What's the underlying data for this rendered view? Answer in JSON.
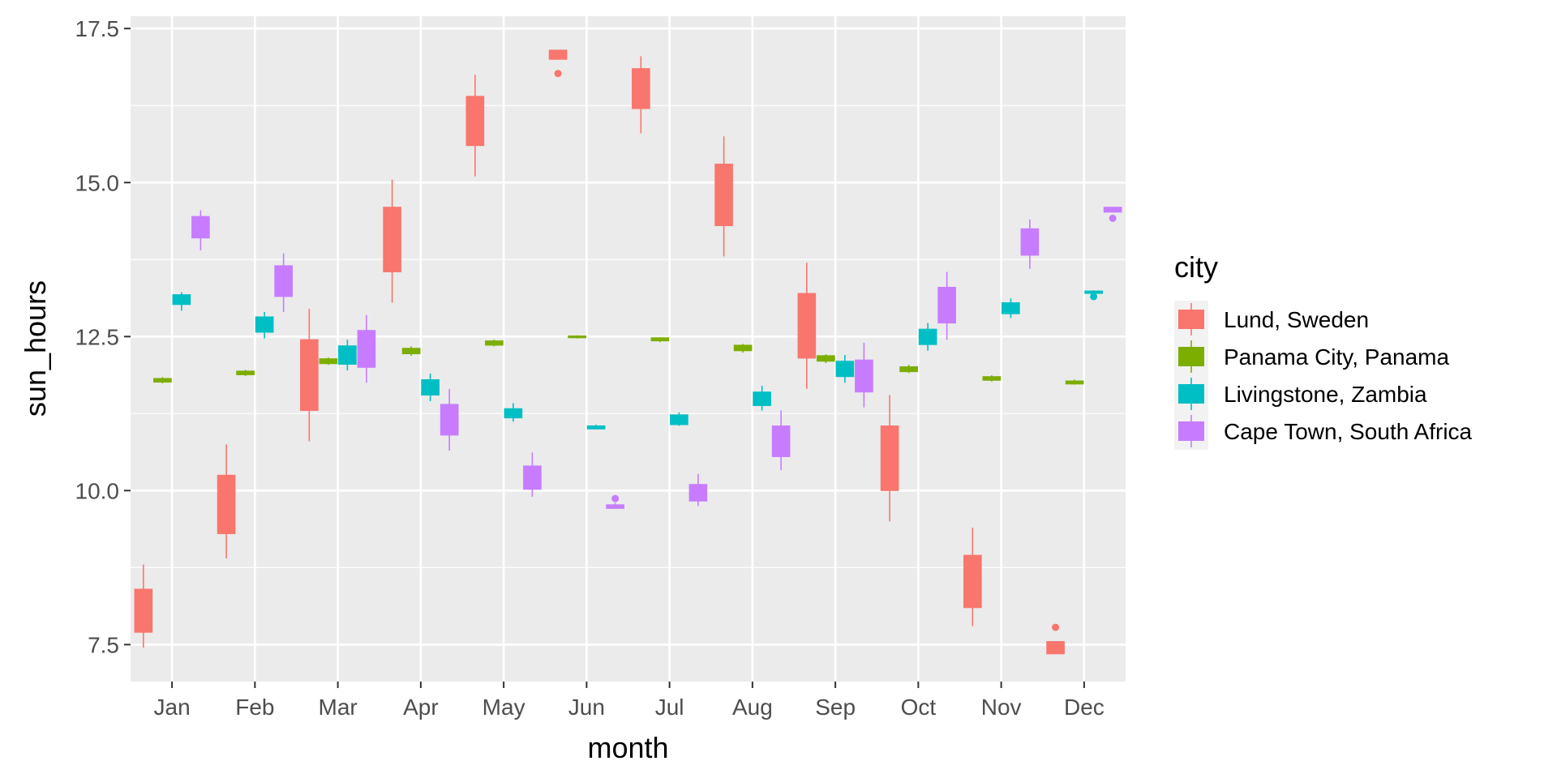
{
  "chart_data": {
    "type": "boxplot",
    "title": "",
    "xlabel": "month",
    "ylabel": "sun_hours",
    "categories": [
      "Jan",
      "Feb",
      "Mar",
      "Apr",
      "May",
      "Jun",
      "Jul",
      "Aug",
      "Sep",
      "Oct",
      "Nov",
      "Dec"
    ],
    "ylim": [
      6.9,
      17.7
    ],
    "yticks": [
      7.5,
      10.0,
      12.5,
      15.0,
      17.5
    ],
    "ytick_labels": [
      "7.5",
      "10.0",
      "12.5",
      "15.0",
      "17.5"
    ],
    "grid": true,
    "legend": {
      "title": "city",
      "position": "right"
    },
    "series": [
      {
        "name": "Lund, Sweden",
        "color": "#F8766D",
        "boxes": [
          {
            "min": 7.45,
            "q1": 7.7,
            "median": 8.0,
            "q3": 8.4,
            "max": 8.8,
            "outliers": []
          },
          {
            "min": 8.9,
            "q1": 9.3,
            "median": 9.8,
            "q3": 10.25,
            "max": 10.75,
            "outliers": []
          },
          {
            "min": 10.8,
            "q1": 11.3,
            "median": 11.9,
            "q3": 12.45,
            "max": 12.95,
            "outliers": []
          },
          {
            "min": 13.05,
            "q1": 13.55,
            "median": 14.1,
            "q3": 14.6,
            "max": 15.05,
            "outliers": []
          },
          {
            "min": 15.1,
            "q1": 15.6,
            "median": 16.05,
            "q3": 16.4,
            "max": 16.75,
            "outliers": []
          },
          {
            "min": 17.0,
            "q1": 17.0,
            "median": 17.05,
            "q3": 17.15,
            "max": 17.15,
            "outliers": [
              16.77
            ]
          },
          {
            "min": 15.8,
            "q1": 16.2,
            "median": 16.55,
            "q3": 16.85,
            "max": 17.05,
            "outliers": []
          },
          {
            "min": 13.8,
            "q1": 14.3,
            "median": 14.85,
            "q3": 15.3,
            "max": 15.75,
            "outliers": []
          },
          {
            "min": 11.65,
            "q1": 12.15,
            "median": 12.7,
            "q3": 13.2,
            "max": 13.7,
            "outliers": []
          },
          {
            "min": 9.5,
            "q1": 10.0,
            "median": 10.55,
            "q3": 11.05,
            "max": 11.55,
            "outliers": []
          },
          {
            "min": 7.8,
            "q1": 8.1,
            "median": 8.5,
            "q3": 8.95,
            "max": 9.4,
            "outliers": []
          },
          {
            "min": 7.35,
            "q1": 7.35,
            "median": 7.45,
            "q3": 7.55,
            "max": 7.55,
            "outliers": [
              7.78
            ]
          }
        ]
      },
      {
        "name": "Panama City, Panama",
        "color": "#7CAE00",
        "boxes": [
          {
            "min": 11.74,
            "q1": 11.76,
            "median": 11.79,
            "q3": 11.82,
            "max": 11.84,
            "outliers": []
          },
          {
            "min": 11.86,
            "q1": 11.88,
            "median": 11.91,
            "q3": 11.94,
            "max": 11.96,
            "outliers": []
          },
          {
            "min": 12.04,
            "q1": 12.06,
            "median": 12.1,
            "q3": 12.14,
            "max": 12.16,
            "outliers": []
          },
          {
            "min": 12.19,
            "q1": 12.22,
            "median": 12.27,
            "q3": 12.31,
            "max": 12.34,
            "outliers": []
          },
          {
            "min": 12.34,
            "q1": 12.36,
            "median": 12.4,
            "q3": 12.43,
            "max": 12.45,
            "outliers": []
          },
          {
            "min": 12.47,
            "q1": 12.48,
            "median": 12.49,
            "q3": 12.51,
            "max": 12.52,
            "outliers": []
          },
          {
            "min": 12.41,
            "q1": 12.43,
            "median": 12.45,
            "q3": 12.48,
            "max": 12.49,
            "outliers": []
          },
          {
            "min": 12.24,
            "q1": 12.27,
            "median": 12.31,
            "q3": 12.36,
            "max": 12.38,
            "outliers": []
          },
          {
            "min": 12.07,
            "q1": 12.1,
            "median": 12.14,
            "q3": 12.19,
            "max": 12.21,
            "outliers": []
          },
          {
            "min": 11.91,
            "q1": 11.93,
            "median": 11.97,
            "q3": 12.01,
            "max": 12.04,
            "outliers": []
          },
          {
            "min": 11.77,
            "q1": 11.79,
            "median": 11.82,
            "q3": 11.85,
            "max": 11.87,
            "outliers": []
          },
          {
            "min": 11.72,
            "q1": 11.73,
            "median": 11.75,
            "q3": 11.78,
            "max": 11.8,
            "outliers": []
          }
        ]
      },
      {
        "name": "Livingstone, Zambia",
        "color": "#00BFC4",
        "boxes": [
          {
            "min": 12.92,
            "q1": 13.02,
            "median": 13.1,
            "q3": 13.18,
            "max": 13.22,
            "outliers": []
          },
          {
            "min": 12.47,
            "q1": 12.57,
            "median": 12.7,
            "q3": 12.82,
            "max": 12.9,
            "outliers": []
          },
          {
            "min": 11.95,
            "q1": 12.05,
            "median": 12.2,
            "q3": 12.35,
            "max": 12.45,
            "outliers": []
          },
          {
            "min": 11.45,
            "q1": 11.55,
            "median": 11.7,
            "q3": 11.8,
            "max": 11.9,
            "outliers": []
          },
          {
            "min": 11.12,
            "q1": 11.18,
            "median": 11.25,
            "q3": 11.33,
            "max": 11.42,
            "outliers": []
          },
          {
            "min": 11.0,
            "q1": 11.0,
            "median": 11.02,
            "q3": 11.05,
            "max": 11.07,
            "outliers": []
          },
          {
            "min": 11.05,
            "q1": 11.07,
            "median": 11.15,
            "q3": 11.23,
            "max": 11.27,
            "outliers": []
          },
          {
            "min": 11.3,
            "q1": 11.38,
            "median": 11.5,
            "q3": 11.6,
            "max": 11.7,
            "outliers": []
          },
          {
            "min": 11.75,
            "q1": 11.85,
            "median": 12.0,
            "q3": 12.1,
            "max": 12.2,
            "outliers": []
          },
          {
            "min": 12.27,
            "q1": 12.37,
            "median": 12.5,
            "q3": 12.62,
            "max": 12.72,
            "outliers": []
          },
          {
            "min": 12.8,
            "q1": 12.87,
            "median": 12.97,
            "q3": 13.05,
            "max": 13.12,
            "outliers": []
          },
          {
            "min": 13.18,
            "q1": 13.2,
            "median": 13.22,
            "q3": 13.24,
            "max": 13.25,
            "outliers": [
              13.15
            ]
          }
        ]
      },
      {
        "name": "Cape Town, South Africa",
        "color": "#C77CFF",
        "boxes": [
          {
            "min": 13.9,
            "q1": 14.1,
            "median": 14.3,
            "q3": 14.45,
            "max": 14.55,
            "outliers": []
          },
          {
            "min": 12.9,
            "q1": 13.15,
            "median": 13.4,
            "q3": 13.65,
            "max": 13.85,
            "outliers": []
          },
          {
            "min": 11.75,
            "q1": 12.0,
            "median": 12.3,
            "q3": 12.6,
            "max": 12.85,
            "outliers": []
          },
          {
            "min": 10.65,
            "q1": 10.9,
            "median": 11.15,
            "q3": 11.4,
            "max": 11.65,
            "outliers": []
          },
          {
            "min": 9.9,
            "q1": 10.02,
            "median": 10.2,
            "q3": 10.4,
            "max": 10.62,
            "outliers": []
          },
          {
            "min": 9.71,
            "q1": 9.71,
            "median": 9.74,
            "q3": 9.77,
            "max": 9.8,
            "outliers": [
              9.87
            ]
          },
          {
            "min": 9.75,
            "q1": 9.83,
            "median": 9.95,
            "q3": 10.1,
            "max": 10.27,
            "outliers": []
          },
          {
            "min": 10.33,
            "q1": 10.55,
            "median": 10.8,
            "q3": 11.05,
            "max": 11.3,
            "outliers": []
          },
          {
            "min": 11.35,
            "q1": 11.6,
            "median": 11.85,
            "q3": 12.12,
            "max": 12.4,
            "outliers": []
          },
          {
            "min": 12.45,
            "q1": 12.72,
            "median": 13.0,
            "q3": 13.3,
            "max": 13.55,
            "outliers": []
          },
          {
            "min": 13.6,
            "q1": 13.82,
            "median": 14.05,
            "q3": 14.25,
            "max": 14.4,
            "outliers": []
          },
          {
            "min": 14.52,
            "q1": 14.52,
            "median": 14.55,
            "q3": 14.6,
            "max": 14.6,
            "outliers": [
              14.42
            ]
          }
        ]
      }
    ]
  }
}
